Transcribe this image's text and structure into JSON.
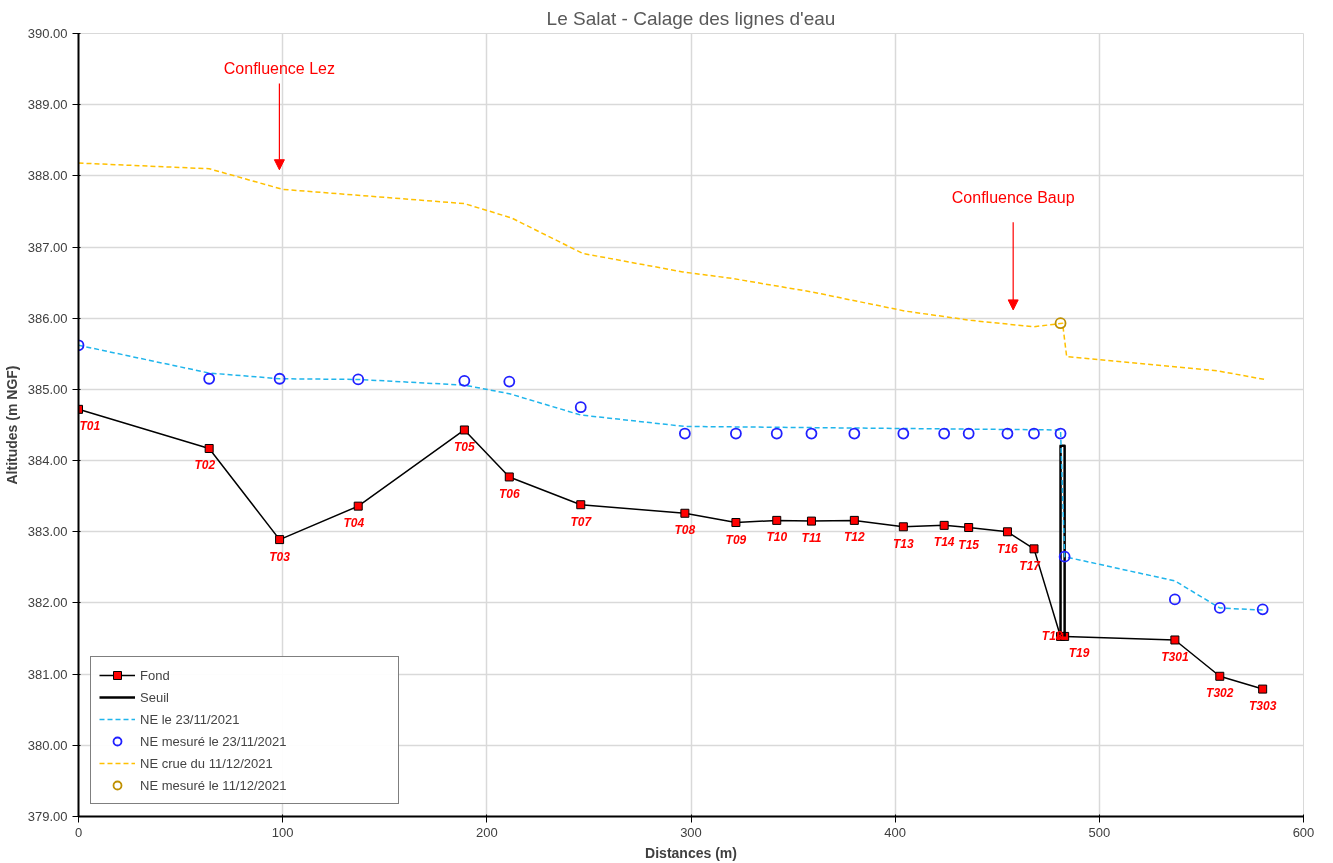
{
  "chart_data": {
    "type": "line",
    "title": "Le Salat - Calage des lignes d'eau",
    "xlabel": "Distances (m)",
    "ylabel": "Altitudes (m NGF)",
    "xlim": [
      0,
      600
    ],
    "xticks": [
      0,
      100,
      200,
      300,
      400,
      500,
      600
    ],
    "ylim": [
      379,
      390
    ],
    "yticks": [
      {
        "value": 379,
        "label": "379.00"
      },
      {
        "value": 380,
        "label": "380.00"
      },
      {
        "value": 381,
        "label": "381.00"
      },
      {
        "value": 382,
        "label": "382.00"
      },
      {
        "value": 383,
        "label": "383.00"
      },
      {
        "value": 384,
        "label": "384.00"
      },
      {
        "value": 385,
        "label": "385.00"
      },
      {
        "value": 386,
        "label": "386.00"
      },
      {
        "value": 387,
        "label": "387.00"
      },
      {
        "value": 388,
        "label": "388.00"
      },
      {
        "value": 389,
        "label": "389.00"
      },
      {
        "value": 390,
        "label": "390.00"
      }
    ],
    "grid": true,
    "legend": "bottom left",
    "annotations": [
      "Confluence Lez",
      "Confluence Baup"
    ],
    "series": [
      {
        "name": "Fond",
        "color": "#000000",
        "marker": "square",
        "line_style": "solid",
        "x": [
          0,
          64,
          98.5,
          137,
          189,
          211,
          246,
          297,
          322,
          342,
          359,
          380,
          404,
          424,
          436,
          455,
          468,
          481,
          483,
          537,
          559,
          580
        ],
        "values": [
          384.72,
          384.17,
          382.89,
          383.36,
          384.43,
          383.77,
          383.38,
          383.26,
          383.13,
          383.16,
          383.15,
          383.16,
          383.07,
          383.09,
          383.06,
          383.0,
          382.76,
          381.53,
          381.53,
          381.48,
          380.97,
          380.79
        ],
        "value_labels": [
          "T01",
          "T02",
          "T03",
          "T04",
          "T05",
          "T06",
          "T07",
          "T08",
          "T09",
          "T10",
          "T11",
          "T12",
          "T13",
          "T14",
          "T15",
          "T16",
          "T17",
          "T18",
          "T19",
          "T301",
          "T302",
          "T303"
        ]
      },
      {
        "name": "Seuil",
        "color": "#000000",
        "marker": "none",
        "line_style": "solid",
        "x": [
          481,
          481,
          483,
          483
        ],
        "values": [
          381.53,
          384.21,
          384.21,
          381.53
        ]
      },
      {
        "name": "NE le 23/11/2021",
        "color": "#1fb5ec",
        "marker": "none",
        "line_style": "dashed",
        "x": [
          0,
          64,
          98.5,
          137,
          189,
          211,
          246,
          297,
          481,
          483,
          537,
          559,
          580
        ],
        "values": [
          385.62,
          385.23,
          385.15,
          385.14,
          385.06,
          384.94,
          384.64,
          384.48,
          384.43,
          382.65,
          382.31,
          381.93,
          381.9
        ]
      },
      {
        "name": "NE mesuré le 23/11/2021",
        "type": "scatter",
        "color": "#2020ff",
        "marker": "circle",
        "x": [
          0,
          64,
          98.5,
          137,
          189,
          211,
          246,
          297,
          322,
          342,
          359,
          380,
          404,
          424,
          436,
          455,
          468,
          481,
          483,
          537,
          559,
          580
        ],
        "values": [
          385.62,
          385.15,
          385.15,
          385.14,
          385.12,
          385.11,
          384.75,
          384.38,
          384.38,
          384.38,
          384.38,
          384.38,
          384.38,
          384.38,
          384.38,
          384.38,
          384.38,
          384.38,
          382.65,
          382.05,
          381.93,
          381.91
        ]
      },
      {
        "name": "NE crue du 11/12/2021",
        "color": "#ffc000",
        "marker": "none",
        "line_style": "dashed",
        "x": [
          0,
          64,
          100,
          189,
          212,
          247,
          296,
          320,
          359,
          405,
          437,
          468,
          482,
          484,
          558,
          581
        ],
        "values": [
          388.18,
          388.1,
          387.81,
          387.61,
          387.41,
          386.91,
          386.65,
          386.56,
          386.37,
          386.1,
          385.97,
          385.88,
          385.93,
          385.46,
          385.26,
          385.14
        ]
      },
      {
        "name": "NE mesuré le 11/12/2021",
        "type": "scatter",
        "color": "#bf9000",
        "marker": "circle",
        "x": [
          481
        ],
        "values": [
          385.93
        ]
      }
    ]
  }
}
